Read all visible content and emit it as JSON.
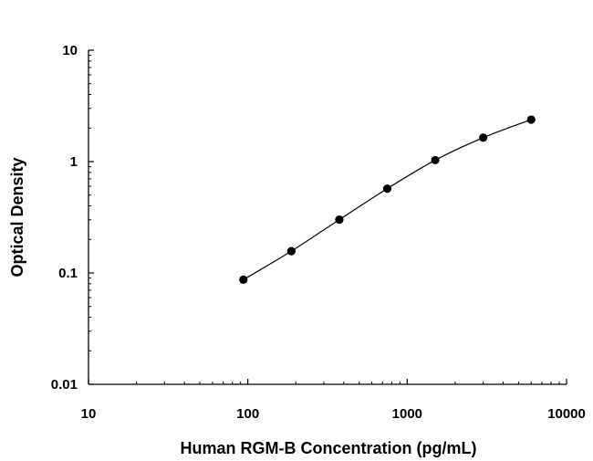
{
  "chart_data": {
    "type": "scatter",
    "title": "",
    "xlabel": "Human RGM-B Concentration (pg/mL)",
    "ylabel": "Optical Density",
    "x_scale": "log",
    "y_scale": "log",
    "xlim": [
      10,
      10000
    ],
    "ylim": [
      0.01,
      10
    ],
    "x_ticks": [
      {
        "value": 10,
        "label": "10"
      },
      {
        "value": 100,
        "label": "100"
      },
      {
        "value": 1000,
        "label": "1000"
      },
      {
        "value": 10000,
        "label": "10000"
      }
    ],
    "y_ticks": [
      {
        "value": 0.01,
        "label": "0.01"
      },
      {
        "value": 0.1,
        "label": "0.1"
      },
      {
        "value": 1,
        "label": "1"
      },
      {
        "value": 10,
        "label": "10"
      }
    ],
    "grid": false,
    "legend": "none",
    "series": [
      {
        "x": [
          93.75,
          187.5,
          375,
          750,
          1500,
          3000,
          6000
        ],
        "y": [
          0.087,
          0.157,
          0.301,
          0.572,
          1.03,
          1.64,
          2.38
        ],
        "marker": "filled-circle",
        "fit_line": true,
        "color": "#000000"
      }
    ]
  }
}
